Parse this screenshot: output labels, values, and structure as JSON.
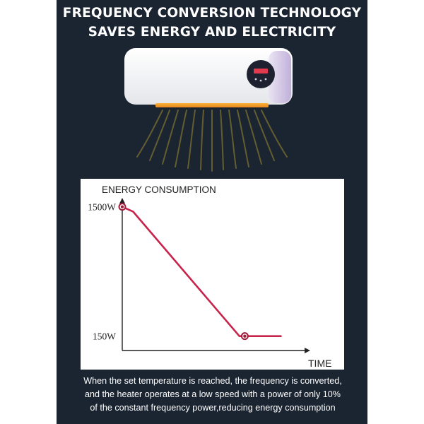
{
  "headline": {
    "line1": "FREQUENCY CONVERSION TECHNOLOGY",
    "line2": "SAVES ENERGY AND ELECTRICITY"
  },
  "caption": {
    "lines": [
      "When the set temperature is reached, the frequency is converted,",
      "and the heater operates at a low speed with a power of only 10%",
      "of the constant frequency power,reducing energy consumption"
    ]
  },
  "colors": {
    "background": "#1b2431",
    "line": "#c8234a",
    "point": "#9e1c3a",
    "axis": "#222222"
  },
  "chart_data": {
    "type": "line",
    "title": "",
    "ylabel": "ENERGY CONSUMPTION",
    "xlabel": "TIME",
    "ytick_labels": [
      "1500W",
      "150W"
    ],
    "ytick_values": [
      1500,
      150
    ],
    "ylim": [
      0,
      1800
    ],
    "xlim": [
      0,
      100
    ],
    "grid": false,
    "series": [
      {
        "x": [
          0,
          6,
          65,
          70,
          88
        ],
        "y": [
          1500,
          1450,
          150,
          150,
          150
        ]
      }
    ],
    "markers": [
      {
        "x": 0,
        "y": 1500
      },
      {
        "x": 68,
        "y": 150
      }
    ]
  }
}
